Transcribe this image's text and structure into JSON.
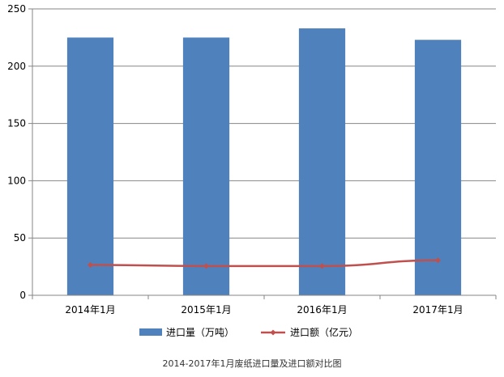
{
  "caption": "2014-2017年1月废纸进口量及进口额对比图",
  "chart_data": {
    "type": "bar",
    "categories": [
      "2014年1月",
      "2015年1月",
      "2016年1月",
      "2017年1月"
    ],
    "series": [
      {
        "name": "进口量（万吨）",
        "type": "bar",
        "color": "#4f81bd",
        "values": [
          225,
          225,
          233,
          223
        ]
      },
      {
        "name": "进口额（亿元）",
        "type": "line",
        "color": "#c0504d",
        "marker": "diamond",
        "values": [
          26.5,
          25.5,
          25.5,
          30.5
        ]
      }
    ],
    "ylim": [
      0,
      250
    ],
    "yticks": [
      0,
      50,
      100,
      150,
      200,
      250
    ],
    "grid": true,
    "legend": "bottom"
  }
}
